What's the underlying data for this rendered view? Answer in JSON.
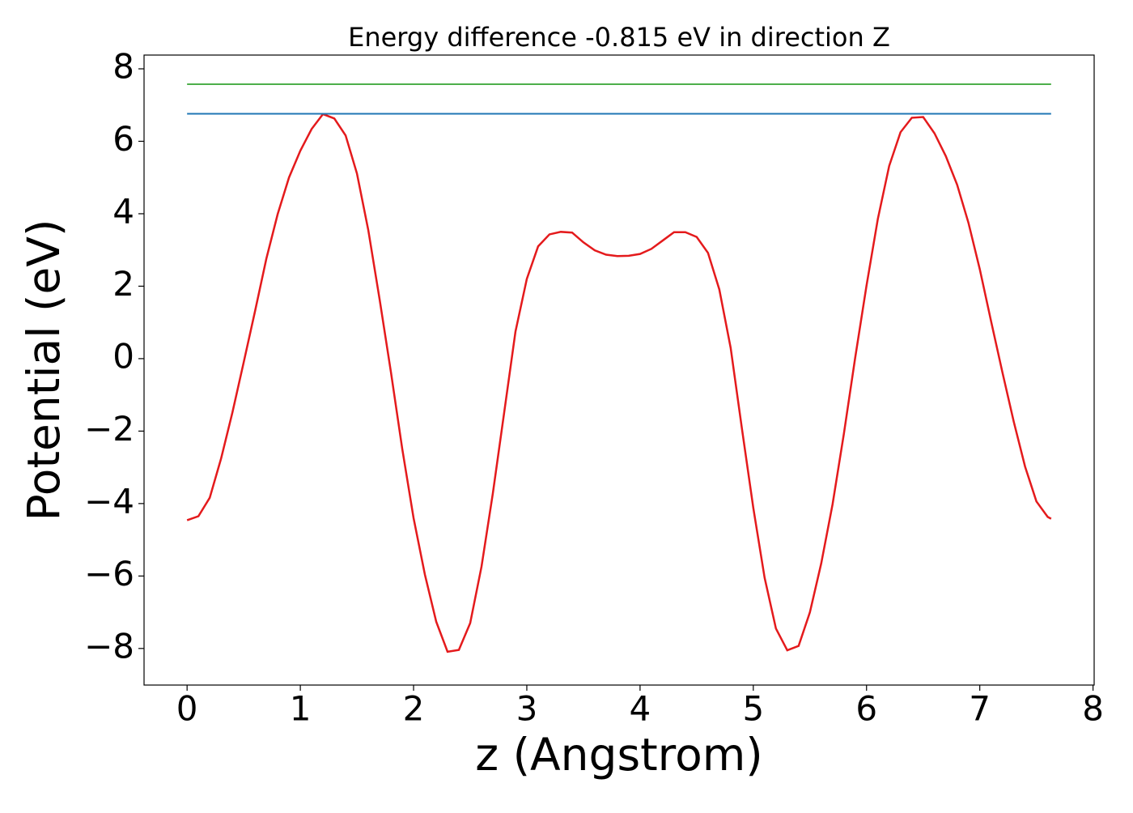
{
  "chart_data": {
    "type": "line",
    "title": "Energy difference -0.815 eV in direction Z",
    "x_label": "z (Angstrom)",
    "y_label": "Potential (eV)",
    "xlim": [
      -0.38,
      8.01
    ],
    "ylim": [
      -9.01,
      8.38
    ],
    "xticks": [
      0,
      1,
      2,
      3,
      4,
      5,
      6,
      7,
      8
    ],
    "yticks": [
      {
        "value": -8,
        "label": "−8"
      },
      {
        "value": -6,
        "label": "−6"
      },
      {
        "value": -4,
        "label": "−4"
      },
      {
        "value": -2,
        "label": "−2"
      },
      0,
      2,
      4,
      6,
      8
    ],
    "series": [
      {
        "color": "#e41a1c",
        "x": [
          0,
          0.1,
          0.2,
          0.3,
          0.4,
          0.5,
          0.6,
          0.7,
          0.8,
          0.9,
          1.0,
          1.1,
          1.2,
          1.3,
          1.4,
          1.5,
          1.6,
          1.7,
          1.8,
          1.9,
          2.0,
          2.1,
          2.2,
          2.3,
          2.4,
          2.5,
          2.6,
          2.7,
          2.8,
          2.9,
          3.0,
          3.1,
          3.2,
          3.3,
          3.4,
          3.5,
          3.6,
          3.7,
          3.8,
          3.9,
          4.0,
          4.1,
          4.2,
          4.3,
          4.4,
          4.5,
          4.6,
          4.7,
          4.8,
          4.9,
          5.0,
          5.1,
          5.2,
          5.3,
          5.4,
          5.5,
          5.6,
          5.7,
          5.8,
          5.9,
          6.0,
          6.1,
          6.2,
          6.3,
          6.4,
          6.5,
          6.6,
          6.7,
          6.8,
          6.9,
          7.0,
          7.1,
          7.2,
          7.3,
          7.4,
          7.5,
          7.6,
          7.63
        ],
        "values": [
          -4.46,
          -4.35,
          -3.84,
          -2.76,
          -1.49,
          -0.1,
          1.31,
          2.76,
          3.99,
          5.0,
          5.74,
          6.34,
          6.75,
          6.63,
          6.16,
          5.11,
          3.55,
          1.64,
          -0.37,
          -2.49,
          -4.4,
          -5.96,
          -7.26,
          -8.09,
          -8.04,
          -7.3,
          -5.74,
          -3.72,
          -1.49,
          0.75,
          2.2,
          3.1,
          3.43,
          3.5,
          3.48,
          3.21,
          2.99,
          2.87,
          2.83,
          2.84,
          2.89,
          3.03,
          3.26,
          3.49,
          3.49,
          3.36,
          2.92,
          1.91,
          0.3,
          -1.94,
          -4.12,
          -6.05,
          -7.45,
          -8.05,
          -7.93,
          -7.0,
          -5.65,
          -4.02,
          -2.07,
          0.03,
          2.02,
          3.86,
          5.32,
          6.25,
          6.65,
          6.67,
          6.22,
          5.59,
          4.8,
          3.75,
          2.47,
          1.03,
          -0.38,
          -1.74,
          -2.98,
          -3.94,
          -4.37,
          -4.42
        ]
      },
      {
        "color": "#1f77b4",
        "x": [
          0,
          7.63
        ],
        "values": [
          6.76,
          6.76
        ]
      },
      {
        "color": "#4daf4a",
        "x": [
          0,
          7.63
        ],
        "values": [
          7.575,
          7.575
        ]
      }
    ]
  }
}
